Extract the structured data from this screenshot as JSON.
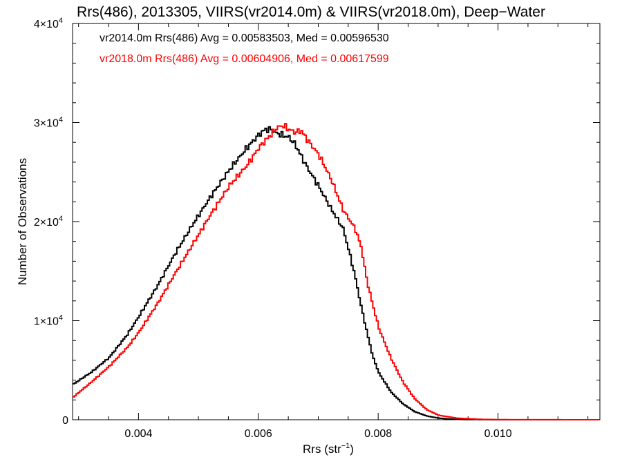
{
  "chart_data": {
    "type": "line",
    "title": "Rrs(486), 2013305, VIIRS(vr2014.0m) & VIIRS(vr2018.0m), Deep−Water",
    "xlabel_main": "Rrs (str",
    "xlabel_sup": "−1",
    "xlabel_close": ")",
    "ylabel": "Number of Observations",
    "xlim": [
      0.0029,
      0.0117
    ],
    "ylim": [
      0,
      40000
    ],
    "x_ticks": [
      {
        "value": 0.004,
        "label": "0.004"
      },
      {
        "value": 0.006,
        "label": "0.006"
      },
      {
        "value": 0.008,
        "label": "0.008"
      },
      {
        "value": 0.01,
        "label": "0.010"
      }
    ],
    "y_ticks": [
      {
        "value": 0,
        "label": "0",
        "mant": "",
        "exp": ""
      },
      {
        "value": 10000,
        "label": "",
        "mant": "1×10",
        "exp": "4"
      },
      {
        "value": 20000,
        "label": "",
        "mant": "2×10",
        "exp": "4"
      },
      {
        "value": 30000,
        "label": "",
        "mant": "3×10",
        "exp": "4"
      },
      {
        "value": 40000,
        "label": "",
        "mant": "4×10",
        "exp": "4"
      }
    ],
    "series": [
      {
        "name": "vr2014.0m Rrs(486) Avg = 0.00583503, Med = 0.00596530",
        "color": "#000000",
        "points": [
          [
            0.0029,
            3600
          ],
          [
            0.0032,
            4800
          ],
          [
            0.0035,
            6300
          ],
          [
            0.0038,
            8600
          ],
          [
            0.004,
            10500
          ],
          [
            0.0043,
            13500
          ],
          [
            0.0046,
            16800
          ],
          [
            0.0049,
            19800
          ],
          [
            0.0052,
            22600
          ],
          [
            0.0055,
            25200
          ],
          [
            0.0058,
            27500
          ],
          [
            0.006,
            28800
          ],
          [
            0.0061,
            29300
          ],
          [
            0.0062,
            29300
          ],
          [
            0.0063,
            28900
          ],
          [
            0.0065,
            28500
          ],
          [
            0.0066,
            27800
          ],
          [
            0.0068,
            25500
          ],
          [
            0.007,
            23500
          ],
          [
            0.0072,
            21300
          ],
          [
            0.0074,
            19300
          ],
          [
            0.0075,
            17000
          ],
          [
            0.0076,
            14500
          ],
          [
            0.0077,
            11500
          ],
          [
            0.0078,
            8800
          ],
          [
            0.0079,
            6300
          ],
          [
            0.008,
            4700
          ],
          [
            0.0082,
            2800
          ],
          [
            0.0084,
            1600
          ],
          [
            0.0086,
            800
          ],
          [
            0.0088,
            380
          ],
          [
            0.009,
            160
          ],
          [
            0.0092,
            60
          ],
          [
            0.0095,
            15
          ],
          [
            0.01,
            0
          ],
          [
            0.0117,
            0
          ]
        ]
      },
      {
        "name": "vr2018.0m Rrs(486) Avg = 0.00604906, Med = 0.00617599",
        "color": "#ff0000",
        "points": [
          [
            0.0029,
            2300
          ],
          [
            0.0032,
            3800
          ],
          [
            0.0035,
            5400
          ],
          [
            0.0038,
            7300
          ],
          [
            0.004,
            8900
          ],
          [
            0.0043,
            11700
          ],
          [
            0.0046,
            14800
          ],
          [
            0.0049,
            17800
          ],
          [
            0.0052,
            20800
          ],
          [
            0.0055,
            23600
          ],
          [
            0.0058,
            25700
          ],
          [
            0.006,
            27500
          ],
          [
            0.0062,
            28800
          ],
          [
            0.0063,
            29500
          ],
          [
            0.0064,
            29700
          ],
          [
            0.0065,
            29300
          ],
          [
            0.0066,
            29000
          ],
          [
            0.0067,
            29200
          ],
          [
            0.0068,
            28300
          ],
          [
            0.007,
            26700
          ],
          [
            0.0072,
            24300
          ],
          [
            0.0074,
            21200
          ],
          [
            0.0076,
            19300
          ],
          [
            0.0077,
            17500
          ],
          [
            0.0078,
            14000
          ],
          [
            0.0079,
            11500
          ],
          [
            0.008,
            9200
          ],
          [
            0.0082,
            6200
          ],
          [
            0.0084,
            3800
          ],
          [
            0.0086,
            2100
          ],
          [
            0.0088,
            1000
          ],
          [
            0.009,
            450
          ],
          [
            0.0093,
            160
          ],
          [
            0.0097,
            40
          ],
          [
            0.0102,
            8
          ],
          [
            0.0117,
            0
          ]
        ]
      }
    ]
  }
}
